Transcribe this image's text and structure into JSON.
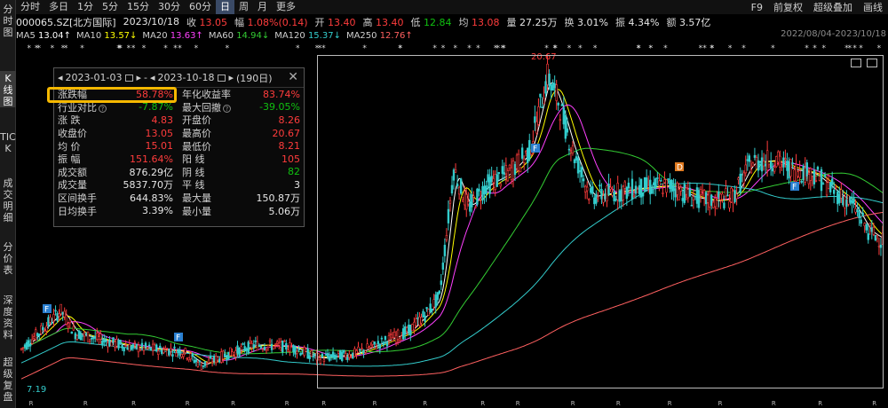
{
  "sidebar": {
    "tabs": [
      {
        "label": "分时图",
        "active": false
      },
      {
        "label": "K线图",
        "active": true
      },
      {
        "label": "TICK",
        "active": false
      },
      {
        "label": "成交明细",
        "active": false
      },
      {
        "label": "分价表",
        "active": false
      },
      {
        "label": "深度资料",
        "active": false
      },
      {
        "label": "超级复盘",
        "active": false
      }
    ]
  },
  "toolbar": {
    "periods": [
      "分时",
      "多日",
      "1分",
      "5分",
      "15分",
      "30分",
      "60分",
      "日",
      "周",
      "月",
      "更多"
    ],
    "active_period": "日",
    "right": [
      "F9",
      "前复权",
      "超级叠加",
      "画线"
    ]
  },
  "quote": {
    "code": "000065.SZ[北方国际]",
    "date": "2023/10/18",
    "close_label": "收",
    "close": "13.05",
    "change_label": "幅",
    "change": "1.08%(0.14)",
    "open_label": "开",
    "open": "13.40",
    "high_label": "高",
    "high": "13.40",
    "low_label": "低",
    "low": "12.84",
    "avg_label": "均",
    "avg": "13.08",
    "vol_label": "量",
    "vol": "27.25万",
    "turn_label": "换",
    "turn": "3.01%",
    "amp_label": "振",
    "amp": "4.34%",
    "amt_label": "额",
    "amt": "3.57亿"
  },
  "ma": [
    {
      "name": "MA5",
      "value": "13.04↑",
      "color": "#ffffff"
    },
    {
      "name": "MA10",
      "value": "13.57↓",
      "color": "#ffff00"
    },
    {
      "name": "MA20",
      "value": "13.63↑",
      "color": "#ff40ff"
    },
    {
      "name": "MA60",
      "value": "14.94↓",
      "color": "#33cc33"
    },
    {
      "name": "MA120",
      "value": "15.37↓",
      "color": "#33cccc"
    },
    {
      "name": "MA250",
      "value": "12.76↑",
      "color": "#ff6060"
    }
  ],
  "date_range": "2022/08/04-2023/10/18",
  "panel": {
    "start": "2023-01-03",
    "sep": "-",
    "end": "2023-10-18",
    "days": "(190日)",
    "rows": [
      {
        "l1": "涨跌幅",
        "v1": "58.78%",
        "c1": "red",
        "l2": "年化收益率",
        "v2": "83.74%",
        "c2": "red"
      },
      {
        "l1": "行业对比",
        "v1": "-7.87%",
        "c1": "green",
        "l2": "最大回撤",
        "v2": "-39.05%",
        "c2": "green"
      },
      {
        "l1": "涨    跌",
        "v1": "4.83",
        "c1": "red",
        "l2": "开盘价",
        "v2": "8.26",
        "c2": "red"
      },
      {
        "l1": "收盘价",
        "v1": "13.05",
        "c1": "red",
        "l2": "最高价",
        "v2": "20.67",
        "c2": "red"
      },
      {
        "l1": "均    价",
        "v1": "15.01",
        "c1": "red",
        "l2": "最低价",
        "v2": "8.21",
        "c2": "red"
      },
      {
        "l1": "振    幅",
        "v1": "151.64%",
        "c1": "red",
        "l2": "阳    线",
        "v2": "105",
        "c2": "red"
      },
      {
        "l1": "成交额",
        "v1": "876.29亿",
        "c1": "wht",
        "l2": "阴    线",
        "v2": "82",
        "c2": "green"
      },
      {
        "l1": "成交量",
        "v1": "5837.70万",
        "c1": "wht",
        "l2": "平    线",
        "v2": "3",
        "c2": "wht"
      },
      {
        "l1": "区间换手",
        "v1": "644.83%",
        "c1": "wht",
        "l2": "最大量",
        "v2": "150.87万",
        "c2": "wht"
      },
      {
        "l1": "日均换手",
        "v1": "3.39%",
        "c1": "wht",
        "l2": "最小量",
        "v2": "5.06万",
        "c2": "wht"
      }
    ]
  },
  "annotations": {
    "high_label": "20.67",
    "low_label": "7.19",
    "markers": [
      "F",
      "F",
      "F",
      "D",
      "F"
    ]
  },
  "colors": {
    "up": "#ff3c3c",
    "down": "#33cccc",
    "bg": "#000000",
    "highlight": "#f5b800"
  }
}
